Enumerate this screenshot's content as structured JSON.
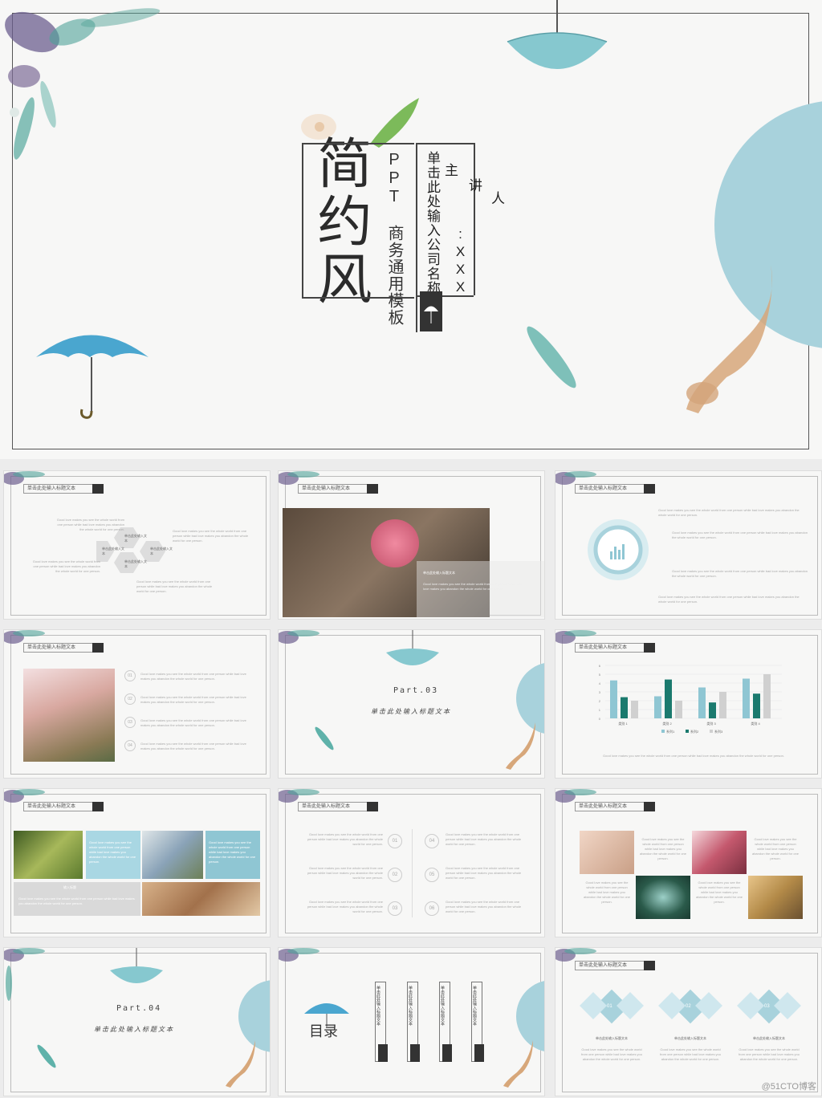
{
  "cover": {
    "title": "简约风",
    "subtitle": "PPT 商务通用模板",
    "company": "单击此处输入公司名称",
    "speaker": "主讲人",
    "speaker_short": "主",
    "speaker_rest": "讲",
    "speaker_end": "人",
    "speaker_name": ":XXX"
  },
  "slides": {
    "header": "单击此处输入标题文本",
    "hex_labels": [
      "单击此处输入文本",
      "单击此处输入文本",
      "单击此处输入文本",
      "单击此处输入文本"
    ],
    "photo_caption": "单击此处输入标题文本",
    "numbers": [
      "01",
      "02",
      "03",
      "04"
    ],
    "numbers6": [
      "01",
      "02",
      "03",
      "04",
      "05",
      "06"
    ],
    "part3": "Part.03",
    "part4": "Part.04",
    "script_title": "单击此处输入标题文本",
    "toc_title": "目录",
    "toc_items": [
      "单击此处输入标题文本",
      "单击此处输入标题文本",
      "单击此处输入标题文本",
      "单击此处输入标题文本"
    ],
    "diamond_nums": [
      "01",
      "02",
      "03"
    ],
    "diamond_label": "单击此处输入标题文本",
    "placeholder_text": "Good love makes you see the whole world from one person while bad love makes you abandon the whole world for one person.",
    "input_title": "输入标题",
    "chart_legend": [
      "系列1",
      "系列2",
      "系列3"
    ],
    "chart_categories": [
      "类别 1",
      "类别 2",
      "类别 3",
      "类别 4"
    ]
  },
  "chart_data": {
    "type": "bar",
    "categories": [
      "类别 1",
      "类别 2",
      "类别 3",
      "类别 4"
    ],
    "series": [
      {
        "name": "系列1",
        "values": [
          4.3,
          2.5,
          3.5,
          4.5
        ]
      },
      {
        "name": "系列2",
        "values": [
          2.4,
          4.4,
          1.8,
          2.8
        ]
      },
      {
        "name": "系列3",
        "values": [
          2,
          2,
          3,
          5
        ]
      }
    ],
    "ylim": [
      0,
      6
    ],
    "yticks": [
      "0",
      "1",
      "2",
      "3",
      "4",
      "5",
      "6"
    ]
  },
  "watermark": "@51CTO博客",
  "colors": {
    "accent": "#8fc6d3",
    "dark": "#333333",
    "teal": "#1b7a6e",
    "light_blue": "#a9d7e3"
  }
}
